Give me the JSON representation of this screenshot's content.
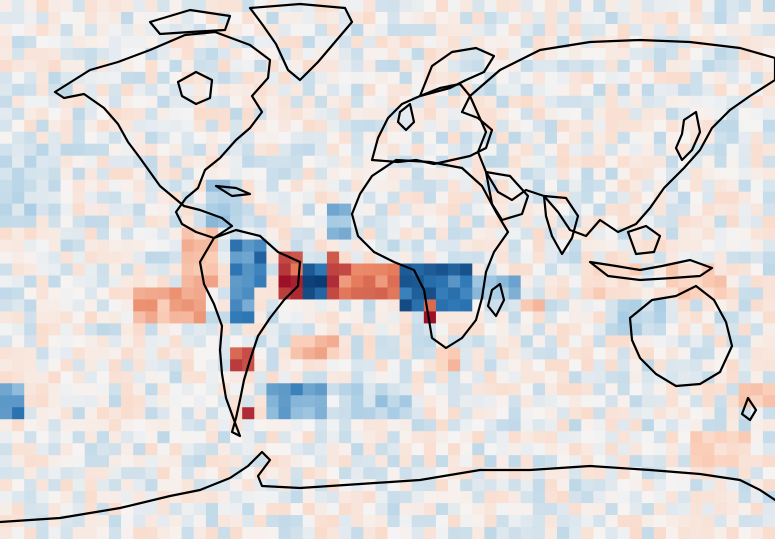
{
  "map": {
    "projection": "equirectangular",
    "lon_range": [
      -180,
      180
    ],
    "lat_range": [
      -90,
      90
    ],
    "grid": {
      "cols": 64,
      "rows": 45
    },
    "colormap": "RdBu_r",
    "value_range": [
      -1,
      1
    ],
    "colors": {
      "strong_negative": "#0b3b73",
      "negative": "#2f79b7",
      "weak_negative": "#a9cde4",
      "neutral": "#f6f4f3",
      "weak_positive": "#fbd2bd",
      "positive": "#e77f5d",
      "strong_positive": "#9c1028",
      "coastline": "#000000"
    },
    "anomaly_boxes": [
      {
        "lon": [
          -97,
          -80
        ],
        "lat": [
          -5,
          14
        ],
        "value": 0.35
      },
      {
        "lon": [
          -120,
          -82
        ],
        "lat": [
          -20,
          -6
        ],
        "value": 0.45
      },
      {
        "lon": [
          -75,
          -62
        ],
        "lat": [
          -20,
          8
        ],
        "value": -0.55
      },
      {
        "lon": [
          -62,
          -55
        ],
        "lat": [
          -5,
          10
        ],
        "value": -0.6
      },
      {
        "lon": [
          -48,
          -40
        ],
        "lat": [
          -10,
          5
        ],
        "value": 0.9
      },
      {
        "lon": [
          -40,
          -30
        ],
        "lat": [
          -10,
          2
        ],
        "value": -0.9
      },
      {
        "lon": [
          -30,
          -20
        ],
        "lat": [
          -10,
          4
        ],
        "value": 0.85
      },
      {
        "lon": [
          -20,
          -5
        ],
        "lat": [
          -10,
          0
        ],
        "value": 0.7
      },
      {
        "lon": [
          -5,
          5
        ],
        "lat": [
          -10,
          0
        ],
        "value": 0.6
      },
      {
        "lon": [
          5,
          25
        ],
        "lat": [
          -12,
          3
        ],
        "value": -0.85
      },
      {
        "lon": [
          15,
          25
        ],
        "lat": [
          -18,
          -10
        ],
        "value": 0.9
      },
      {
        "lon": [
          25,
          38
        ],
        "lat": [
          -12,
          0
        ],
        "value": -0.75
      },
      {
        "lon": [
          38,
          60
        ],
        "lat": [
          -10,
          -2
        ],
        "value": -0.35
      },
      {
        "lon": [
          60,
          75
        ],
        "lat": [
          -15,
          -8
        ],
        "value": 0.35
      },
      {
        "lon": [
          -72,
          -64
        ],
        "lat": [
          -35,
          -28
        ],
        "value": 0.8
      },
      {
        "lon": [
          -68,
          -60
        ],
        "lat": [
          -50,
          -45
        ],
        "value": 0.8
      },
      {
        "lon": [
          -55,
          -30
        ],
        "lat": [
          -48,
          -38
        ],
        "value": -0.45
      },
      {
        "lon": [
          -45,
          -25
        ],
        "lat": [
          -30,
          -22
        ],
        "value": 0.35
      },
      {
        "lon": [
          -180,
          -170
        ],
        "lat": [
          -50,
          -40
        ],
        "value": -0.5
      },
      {
        "lon": [
          165,
          180
        ],
        "lat": [
          -45,
          -40
        ],
        "value": 0.35
      },
      {
        "lon": [
          20,
          35
        ],
        "lat": [
          -35,
          -25
        ],
        "value": 0.3
      },
      {
        "lon": [
          -85,
          -70
        ],
        "lat": [
          15,
          28
        ],
        "value": -0.25
      },
      {
        "lon": [
          -30,
          -15
        ],
        "lat": [
          10,
          20
        ],
        "value": -0.3
      },
      {
        "lon": [
          90,
          120
        ],
        "lat": [
          -10,
          0
        ],
        "value": 0.2
      },
      {
        "lon": [
          100,
          130
        ],
        "lat": [
          -22,
          -10
        ],
        "value": -0.2
      },
      {
        "lon": [
          130,
          160
        ],
        "lat": [
          -8,
          0
        ],
        "value": 0.25
      },
      {
        "lon": [
          -180,
          -150
        ],
        "lat": [
          20,
          40
        ],
        "value": -0.15
      },
      {
        "lon": [
          -20,
          10
        ],
        "lat": [
          -50,
          -40
        ],
        "value": -0.2
      },
      {
        "lon": [
          140,
          170
        ],
        "lat": [
          -65,
          -55
        ],
        "value": 0.25
      }
    ]
  }
}
